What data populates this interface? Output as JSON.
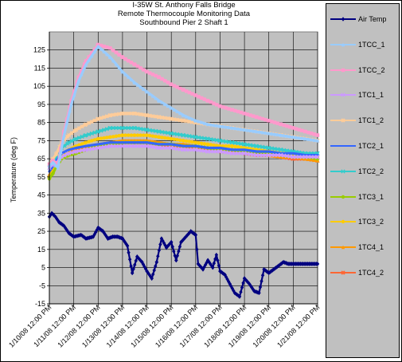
{
  "chart_data": {
    "type": "line",
    "title_lines": [
      "I-35W St. Anthony Falls Bridge",
      "Remote Thermocouple Monitoring Data",
      "Southbound Pier 2 Shaft 1"
    ],
    "xlabel": "",
    "ylabel": "Temperature (deg F)",
    "ylim": [
      -15,
      135
    ],
    "yticks": [
      -15,
      -5,
      5,
      15,
      25,
      35,
      45,
      55,
      65,
      75,
      85,
      95,
      105,
      115,
      125
    ],
    "xlim": [
      "1/10/08 12:00 PM",
      "1/21/08 12:00 PM"
    ],
    "xticks": [
      "1/10/08 12:00 PM",
      "1/11/08 12:00 PM",
      "1/12/08 12:00 PM",
      "1/13/08 12:00 PM",
      "1/14/08 12:00 PM",
      "1/15/08 12:00 PM",
      "1/16/08 12:00 PM",
      "1/17/08 12:00 PM",
      "1/18/08 12:00 PM",
      "1/19/08 12:00 PM",
      "1/20/08 12:00 PM",
      "1/21/08 12:00 PM"
    ],
    "grid": true,
    "plot_background": "#c0c0c0",
    "legend_position": "right",
    "series": [
      {
        "name": "Air Temp",
        "color": "#000080",
        "marker": "diamond",
        "x": [
          0.0,
          0.1,
          0.25,
          0.4,
          0.6,
          0.8,
          1.0,
          1.3,
          1.5,
          1.8,
          2.0,
          2.2,
          2.4,
          2.6,
          2.8,
          3.0,
          3.2,
          3.4,
          3.6,
          3.8,
          4.0,
          4.2,
          4.4,
          4.6,
          4.8,
          5.0,
          5.2,
          5.4,
          5.6,
          5.8,
          6.0,
          6.1,
          6.3,
          6.5,
          6.7,
          6.85,
          7.0,
          7.2,
          7.4,
          7.6,
          7.8,
          8.0,
          8.2,
          8.4,
          8.6,
          8.8,
          9.0,
          9.2,
          9.4,
          9.6,
          9.8,
          10.0,
          10.2,
          10.4,
          10.6,
          10.8,
          11.0
        ],
        "y": [
          33,
          35,
          33,
          30,
          28,
          24,
          22,
          23,
          21,
          22,
          27,
          25,
          21,
          22,
          22,
          21,
          17,
          2,
          11,
          8,
          3,
          -1,
          8,
          21,
          16,
          19,
          9,
          19,
          22,
          25,
          23,
          7,
          4,
          9,
          5,
          12,
          3,
          1,
          -4,
          -9,
          -11,
          -1,
          -4,
          -8,
          -9,
          4,
          2,
          4,
          6,
          8,
          7,
          7,
          7,
          7,
          7,
          7,
          7
        ]
      },
      {
        "name": "1TCC_1",
        "color": "#99ccff",
        "marker": "triangle",
        "x": [
          0.0,
          0.15,
          0.35,
          0.6,
          0.9,
          1.2,
          1.5,
          2.0,
          2.5,
          3.0,
          3.5,
          4.0,
          4.5,
          5.0,
          5.5,
          6.0,
          6.5,
          7.0,
          7.5,
          8.0,
          8.5,
          9.0,
          9.5,
          10.0,
          10.5,
          11.0
        ],
        "y": [
          61,
          63,
          60,
          78,
          95,
          108,
          117,
          127,
          121,
          113,
          107,
          102,
          97,
          93,
          89,
          86,
          84,
          83,
          82,
          81,
          80,
          79,
          78,
          77,
          76,
          75
        ]
      },
      {
        "name": "1TCC_2",
        "color": "#ff99cc",
        "marker": "square",
        "x": [
          0.0,
          0.15,
          0.35,
          0.6,
          0.9,
          1.2,
          1.5,
          2.0,
          2.5,
          3.0,
          3.5,
          4.0,
          4.5,
          5.0,
          5.5,
          6.0,
          6.5,
          7.0,
          7.5,
          8.0,
          8.5,
          9.0,
          9.5,
          10.0,
          10.5,
          11.0
        ],
        "y": [
          62,
          64,
          62,
          80,
          97,
          110,
          119,
          128,
          126,
          121,
          117,
          113,
          110,
          106,
          103,
          100,
          97,
          94,
          92,
          90,
          88,
          86,
          84,
          82,
          80,
          78
        ]
      },
      {
        "name": "1TC1_1",
        "color": "#cc99ff",
        "marker": "x",
        "x": [
          0.0,
          0.15,
          0.3,
          0.5,
          0.8,
          1.1,
          1.5,
          2.0,
          2.5,
          3.0,
          3.5,
          4.0,
          4.5,
          5.0,
          5.5,
          6.0,
          6.5,
          7.0,
          7.5,
          8.0,
          8.5,
          9.0,
          9.5,
          10.0,
          10.5,
          11.0
        ],
        "y": [
          60,
          62,
          63,
          66,
          68,
          69,
          70,
          71,
          72,
          72,
          72,
          72,
          71,
          71,
          70,
          70,
          69,
          69,
          68,
          68,
          67,
          67,
          67,
          66,
          66,
          66
        ]
      },
      {
        "name": "1TC1_2",
        "color": "#ffcc99",
        "marker": "star",
        "x": [
          0.0,
          0.15,
          0.3,
          0.5,
          0.8,
          1.1,
          1.5,
          2.0,
          2.5,
          3.0,
          3.5,
          4.0,
          4.5,
          5.0,
          5.5,
          6.0,
          6.5,
          7.0,
          7.5,
          8.0,
          8.5,
          9.0,
          9.5,
          10.0,
          10.5,
          11.0
        ],
        "y": [
          62,
          65,
          68,
          74,
          78,
          81,
          84,
          87,
          89,
          90,
          90,
          89,
          88,
          87,
          86,
          85,
          84,
          83,
          82,
          81,
          80,
          79,
          78,
          77,
          76,
          75
        ]
      },
      {
        "name": "1TC2_1",
        "color": "#3366ff",
        "marker": "none",
        "x": [
          0.0,
          0.15,
          0.3,
          0.5,
          0.8,
          1.1,
          1.5,
          2.0,
          2.5,
          3.0,
          3.5,
          4.0,
          4.5,
          5.0,
          5.5,
          6.0,
          6.5,
          7.0,
          7.5,
          8.0,
          8.5,
          9.0,
          9.5,
          10.0,
          10.5,
          11.0
        ],
        "y": [
          58,
          61,
          64,
          68,
          70,
          71,
          72,
          73,
          74,
          74,
          74,
          74,
          73,
          73,
          72,
          72,
          71,
          71,
          70,
          70,
          69,
          69,
          68,
          68,
          67,
          67
        ]
      },
      {
        "name": "1TC2_2",
        "color": "#33cccc",
        "marker": "x",
        "x": [
          0.0,
          0.15,
          0.3,
          0.5,
          0.8,
          1.1,
          1.5,
          2.0,
          2.5,
          3.0,
          3.5,
          4.0,
          4.5,
          5.0,
          5.5,
          6.0,
          6.5,
          7.0,
          7.5,
          8.0,
          8.5,
          9.0,
          9.5,
          10.0,
          10.5,
          11.0
        ],
        "y": [
          60,
          63,
          66,
          71,
          74,
          76,
          78,
          80,
          82,
          82,
          82,
          81,
          80,
          79,
          78,
          77,
          76,
          75,
          74,
          73,
          72,
          71,
          70,
          69,
          68,
          68
        ]
      },
      {
        "name": "1TC3_1",
        "color": "#99cc00",
        "marker": "circle",
        "x": [
          0.0,
          0.15,
          0.3,
          0.5,
          0.8,
          1.1,
          1.5,
          2.0,
          2.5,
          3.0,
          3.5,
          4.0,
          4.5,
          5.0,
          5.5,
          6.0,
          6.5,
          7.0,
          7.5,
          8.0,
          8.5,
          9.0,
          9.5,
          10.0,
          10.5,
          11.0
        ],
        "y": [
          54,
          57,
          61,
          65,
          67,
          68,
          70,
          72,
          73,
          74,
          74,
          74,
          73,
          73,
          72,
          72,
          71,
          70,
          70,
          69,
          68,
          68,
          67,
          66,
          66,
          65
        ]
      },
      {
        "name": "1TC3_2",
        "color": "#ffcc00",
        "marker": "circle",
        "x": [
          0.0,
          0.15,
          0.3,
          0.5,
          0.8,
          1.1,
          1.5,
          2.0,
          2.5,
          3.0,
          3.5,
          4.0,
          4.5,
          5.0,
          5.5,
          6.0,
          6.5,
          7.0,
          7.5,
          8.0,
          8.5,
          9.0,
          9.5,
          10.0,
          10.5,
          11.0
        ],
        "y": [
          55,
          58,
          62,
          67,
          70,
          72,
          74,
          76,
          77,
          78,
          78,
          78,
          77,
          76,
          75,
          74,
          73,
          72,
          72,
          71,
          70,
          69,
          68,
          68,
          67,
          66
        ]
      },
      {
        "name": "1TC4_1",
        "color": "#ff9900",
        "marker": "triangle",
        "x": [
          0.0,
          0.15,
          0.3,
          0.5,
          0.8,
          1.1,
          1.5,
          2.0,
          2.5,
          3.0,
          3.5,
          4.0,
          4.5,
          5.0,
          5.5,
          6.0,
          6.5,
          7.0,
          7.5,
          8.0,
          8.5,
          9.0,
          9.5,
          10.0,
          10.5,
          11.0
        ],
        "y": [
          56,
          59,
          63,
          67,
          69,
          70,
          72,
          73,
          74,
          75,
          75,
          75,
          74,
          73,
          73,
          72,
          71,
          70,
          69,
          69,
          68,
          67,
          66,
          66,
          65,
          64
        ]
      },
      {
        "name": "1TC4_2",
        "color": "#ff6633",
        "marker": "star",
        "x": [
          0.0,
          0.15,
          0.3,
          0.5,
          0.8,
          1.1,
          1.5,
          2.0,
          2.5,
          3.0,
          3.5,
          4.0,
          4.5,
          5.0,
          5.5,
          6.0,
          6.5,
          7.0,
          7.5,
          8.0,
          8.5,
          9.0,
          9.5,
          10.0,
          10.5,
          11.0
        ],
        "y": [
          55,
          58,
          62,
          66,
          68,
          69,
          71,
          72,
          73,
          74,
          74,
          74,
          73,
          72,
          72,
          71,
          70,
          69,
          69,
          68,
          67,
          67,
          66,
          65,
          65,
          64
        ]
      }
    ]
  }
}
